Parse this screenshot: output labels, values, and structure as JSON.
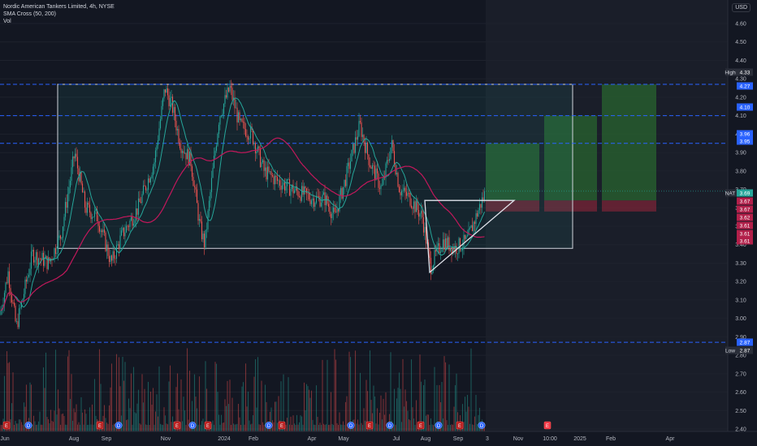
{
  "header": {
    "symbol_line": "Nordic American Tankers Limited, 4h, NYSE",
    "indicator_sma": "SMA Cross (50, 200)",
    "indicator_vol": "Vol",
    "currency": "USD"
  },
  "colors": {
    "background": "#131722",
    "up_candle": "#26a69a",
    "down_candle": "#ef5350",
    "sma_fast": "#26a69a",
    "sma_slow": "#c2185b",
    "level_line": "#2962ff",
    "profit_zone": "#1b5e20",
    "loss_zone": "#7f1d2b"
  },
  "chart_data": {
    "type": "candlestick",
    "y_axis_ticks": [
      "4.60",
      "4.50",
      "4.40",
      "4.30",
      "4.20",
      "4.10",
      "4.00",
      "3.90",
      "3.80",
      "3.70",
      "3.60",
      "3.50",
      "3.40",
      "3.30",
      "3.20",
      "3.10",
      "3.00",
      "2.90",
      "2.80",
      "2.70",
      "2.60",
      "2.50",
      "2.40"
    ],
    "ylim": [
      2.4,
      4.6
    ],
    "x_axis_ticks": [
      "Jun",
      "Aug",
      "Sep",
      "Nov",
      "2024",
      "Feb",
      "Apr",
      "May",
      "Jul",
      "Aug",
      "Sep",
      "3",
      "Nov",
      "10:00",
      "2025",
      "Feb",
      "Apr"
    ],
    "price_labels": [
      {
        "text": "High",
        "value": "4.33",
        "kind": "high"
      },
      {
        "text": "",
        "value": "4.27",
        "kind": "level"
      },
      {
        "text": "",
        "value": "4.10",
        "kind": "level"
      },
      {
        "text": "",
        "value": "3.96",
        "kind": "level"
      },
      {
        "text": "",
        "value": "3.95",
        "kind": "level"
      },
      {
        "text": "NAT",
        "value": "3.69",
        "kind": "last"
      },
      {
        "text": "",
        "value": "3.67",
        "kind": "red"
      },
      {
        "text": "",
        "value": "3.67",
        "kind": "red"
      },
      {
        "text": "",
        "value": "3.62",
        "kind": "red"
      },
      {
        "text": "",
        "value": "3.61",
        "kind": "red"
      },
      {
        "text": "",
        "value": "3.61",
        "kind": "red"
      },
      {
        "text": "",
        "value": "3.61",
        "kind": "red"
      },
      {
        "text": "",
        "value": "2.87",
        "kind": "level"
      },
      {
        "text": "Low",
        "value": "2.87",
        "kind": "low"
      }
    ],
    "horizontal_levels": [
      4.27,
      4.1,
      3.95,
      2.87
    ],
    "range_box": {
      "top": 4.27,
      "bottom": 3.38
    },
    "triangle": {
      "top": 3.64,
      "bottom": 3.25
    },
    "long_positions": [
      {
        "entry": 3.64,
        "target": 3.95,
        "stop": 3.58
      },
      {
        "entry": 3.64,
        "target": 4.1,
        "stop": 3.58
      },
      {
        "entry": 3.64,
        "target": 4.27,
        "stop": 3.58
      }
    ],
    "event_markers": [
      "E",
      "D",
      "E",
      "D",
      "E",
      "D",
      "E",
      "D",
      "E",
      "D",
      "E",
      "D",
      "E",
      "D",
      "E",
      "D",
      "E",
      "D",
      "E",
      "D",
      "E",
      "D",
      "E",
      "D",
      "E",
      "D",
      "E"
    ]
  }
}
